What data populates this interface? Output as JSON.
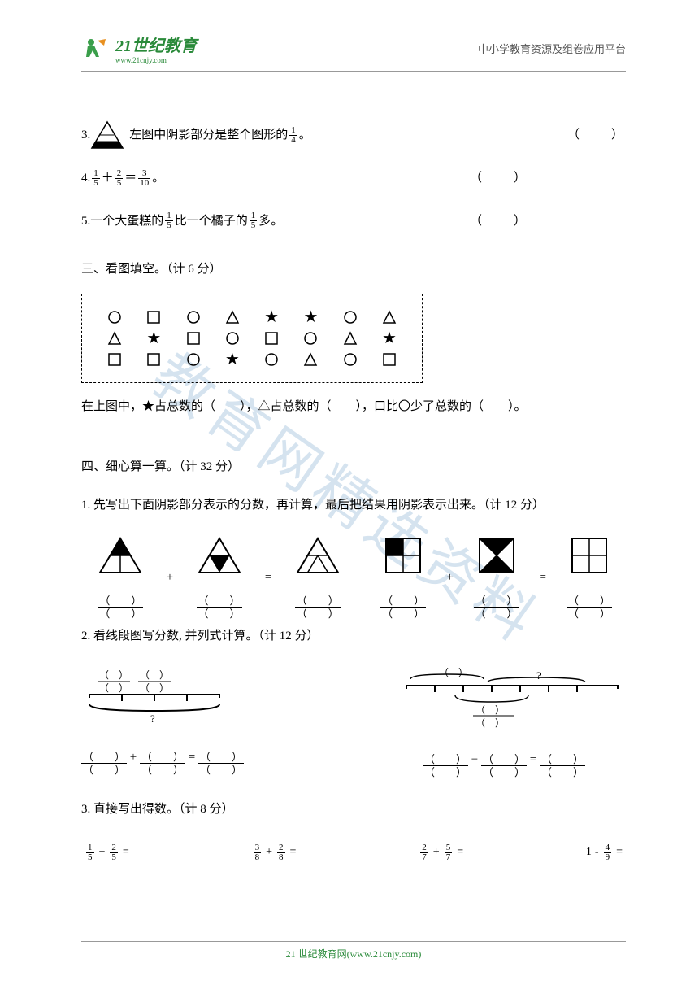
{
  "header": {
    "logo_text": "21世纪教育",
    "logo_url": "www.21cnjy.com",
    "right_text": "中小学教育资源及组卷应用平台"
  },
  "watermark": "教育网精选资料",
  "questions": {
    "q3": {
      "num": "3.",
      "text_before": "左图中阴影部分是整个图形的",
      "frac_n": "1",
      "frac_d": "4",
      "text_after": "。",
      "blank": "（　　）"
    },
    "q4": {
      "num": "4.",
      "f1_n": "1",
      "f1_d": "5",
      "f2_n": "2",
      "f2_d": "5",
      "f3_n": "3",
      "f3_d": "10",
      "text_after": "。",
      "blank": "（　　）"
    },
    "q5": {
      "num": "5.",
      "text_a": "一个大蛋糕的",
      "f1_n": "1",
      "f1_d": "5",
      "text_b": "比一个橘子的",
      "f2_n": "1",
      "f2_d": "5",
      "text_c": "多。",
      "blank": "（　　）"
    }
  },
  "section3": {
    "title": "三、看图填空。（计 6 分）",
    "shapes": [
      [
        "circle",
        "square",
        "circle",
        "triangle",
        "star",
        "star",
        "circle",
        "triangle"
      ],
      [
        "triangle",
        "star",
        "square",
        "circle",
        "square",
        "circle",
        "triangle",
        "star"
      ],
      [
        "square",
        "square",
        "circle",
        "star",
        "circle",
        "triangle",
        "circle",
        "square"
      ]
    ],
    "text": "在上图中，★占总数的（　　），△占总数的（　　），口比〇少了总数的（　　）。"
  },
  "section4": {
    "title": "四、细心算一算。（计 32 分）",
    "sub1": "1. 先写出下面阴影部分表示的分数，再计算，最后把结果用阴影表示出来。（计 12 分）",
    "paren_frac_n": "（　　）",
    "paren_frac_d": "（　　）",
    "sub2": "2. 看线段图写分数, 并列式计算。（计 12 分）",
    "sub3": "3. 直接写出得数。（计 8 分）",
    "calcs": [
      {
        "a_n": "1",
        "a_d": "5",
        "b_n": "2",
        "b_d": "5",
        "op": "+"
      },
      {
        "a_n": "3",
        "a_d": "8",
        "b_n": "2",
        "b_d": "8",
        "op": "+"
      },
      {
        "a_n": "2",
        "a_d": "7",
        "b_n": "5",
        "b_d": "7",
        "op": "+"
      },
      {
        "a_n": "4",
        "a_d": "9",
        "op": "-",
        "prefix": "1"
      }
    ]
  },
  "footer": "21 世纪教育网(www.21cnjy.com)"
}
